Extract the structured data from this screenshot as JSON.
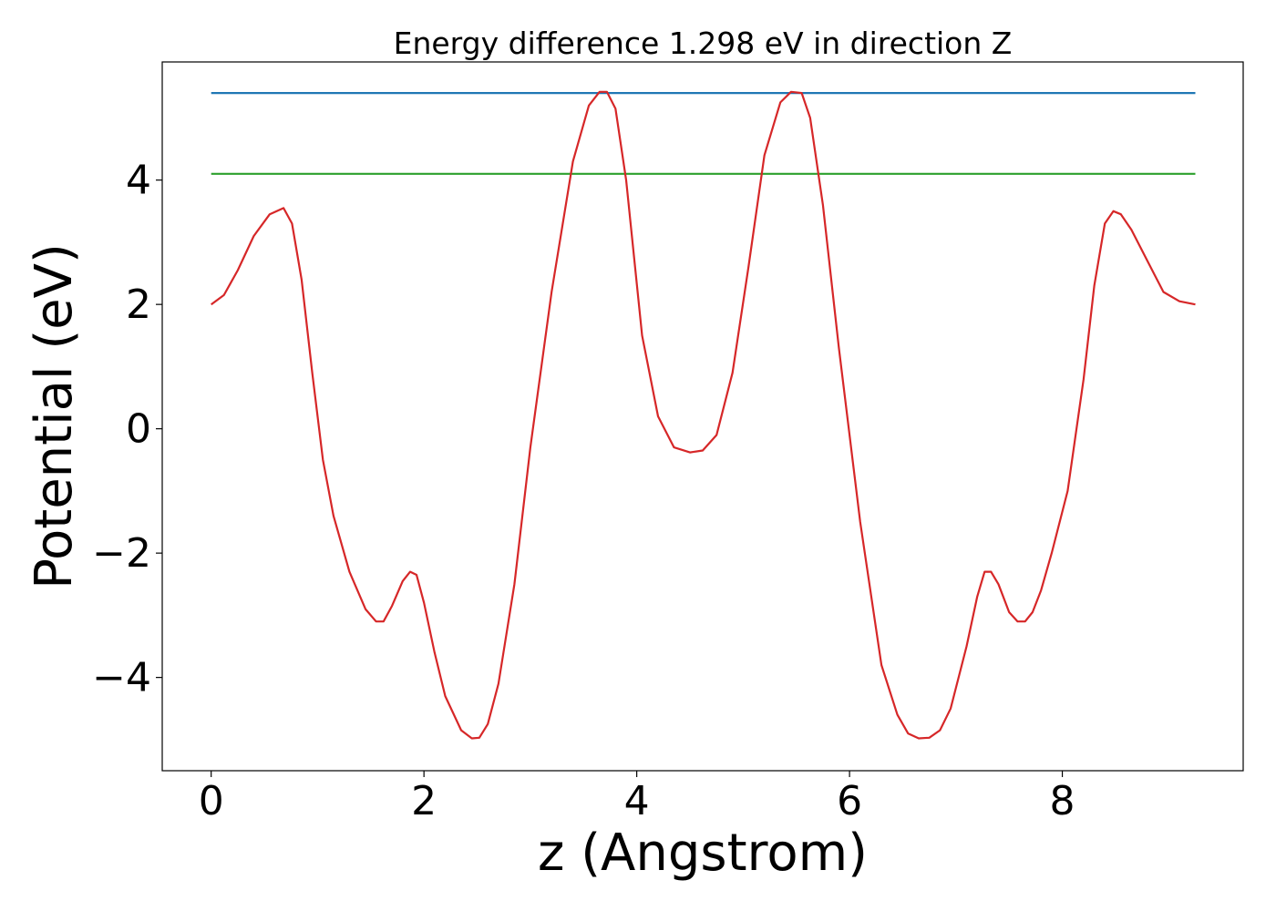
{
  "chart_data": {
    "type": "line",
    "title": "Energy difference 1.298 eV in direction Z",
    "xlabel": "z (Angstrom)",
    "ylabel": "Potential (eV)",
    "xlim": [
      -0.46,
      9.7
    ],
    "ylim": [
      -5.5,
      5.9
    ],
    "xticks": [
      0,
      2,
      4,
      6,
      8
    ],
    "xtick_labels": [
      "0",
      "2",
      "4",
      "6",
      "8"
    ],
    "yticks": [
      -4,
      -2,
      0,
      2,
      4
    ],
    "ytick_labels": [
      "−4",
      "−2",
      "0",
      "2",
      "4"
    ],
    "grid": false,
    "legend": "none",
    "series": [
      {
        "color": "#d62728",
        "x": [
          0.0,
          0.12,
          0.25,
          0.4,
          0.55,
          0.68,
          0.76,
          0.85,
          0.95,
          1.05,
          1.15,
          1.3,
          1.45,
          1.55,
          1.62,
          1.7,
          1.8,
          1.87,
          1.93,
          2.0,
          2.1,
          2.2,
          2.35,
          2.45,
          2.52,
          2.6,
          2.7,
          2.85,
          3.0,
          3.2,
          3.4,
          3.55,
          3.65,
          3.72,
          3.8,
          3.9,
          4.05,
          4.2,
          4.35,
          4.5,
          4.62,
          4.75,
          4.9,
          5.05,
          5.2,
          5.35,
          5.45,
          5.55,
          5.63,
          5.75,
          5.9,
          6.1,
          6.3,
          6.45,
          6.55,
          6.65,
          6.75,
          6.85,
          6.95,
          7.1,
          7.2,
          7.27,
          7.33,
          7.4,
          7.5,
          7.58,
          7.65,
          7.72,
          7.8,
          7.9,
          8.05,
          8.2,
          8.3,
          8.4,
          8.48,
          8.55,
          8.65,
          8.8,
          8.95,
          9.1,
          9.25
        ],
        "y": [
          2.0,
          2.15,
          2.55,
          3.1,
          3.45,
          3.55,
          3.3,
          2.4,
          0.9,
          -0.5,
          -1.4,
          -2.3,
          -2.9,
          -3.1,
          -3.1,
          -2.85,
          -2.45,
          -2.3,
          -2.35,
          -2.8,
          -3.6,
          -4.3,
          -4.85,
          -4.98,
          -4.97,
          -4.75,
          -4.1,
          -2.5,
          -0.3,
          2.2,
          4.3,
          5.2,
          5.42,
          5.42,
          5.15,
          4.0,
          1.5,
          0.2,
          -0.3,
          -0.38,
          -0.35,
          -0.1,
          0.9,
          2.6,
          4.4,
          5.25,
          5.42,
          5.4,
          5.0,
          3.6,
          1.3,
          -1.5,
          -3.8,
          -4.6,
          -4.9,
          -4.98,
          -4.97,
          -4.85,
          -4.5,
          -3.5,
          -2.7,
          -2.3,
          -2.3,
          -2.5,
          -2.95,
          -3.1,
          -3.1,
          -2.95,
          -2.6,
          -2.0,
          -1.0,
          0.8,
          2.3,
          3.3,
          3.5,
          3.45,
          3.2,
          2.7,
          2.2,
          2.05,
          2.0
        ]
      },
      {
        "color": "#1f77b4",
        "x": [
          0.0,
          9.25
        ],
        "y": [
          5.4,
          5.4
        ]
      },
      {
        "color": "#2ca02c",
        "x": [
          0.0,
          9.25
        ],
        "y": [
          4.1,
          4.1
        ]
      }
    ]
  }
}
